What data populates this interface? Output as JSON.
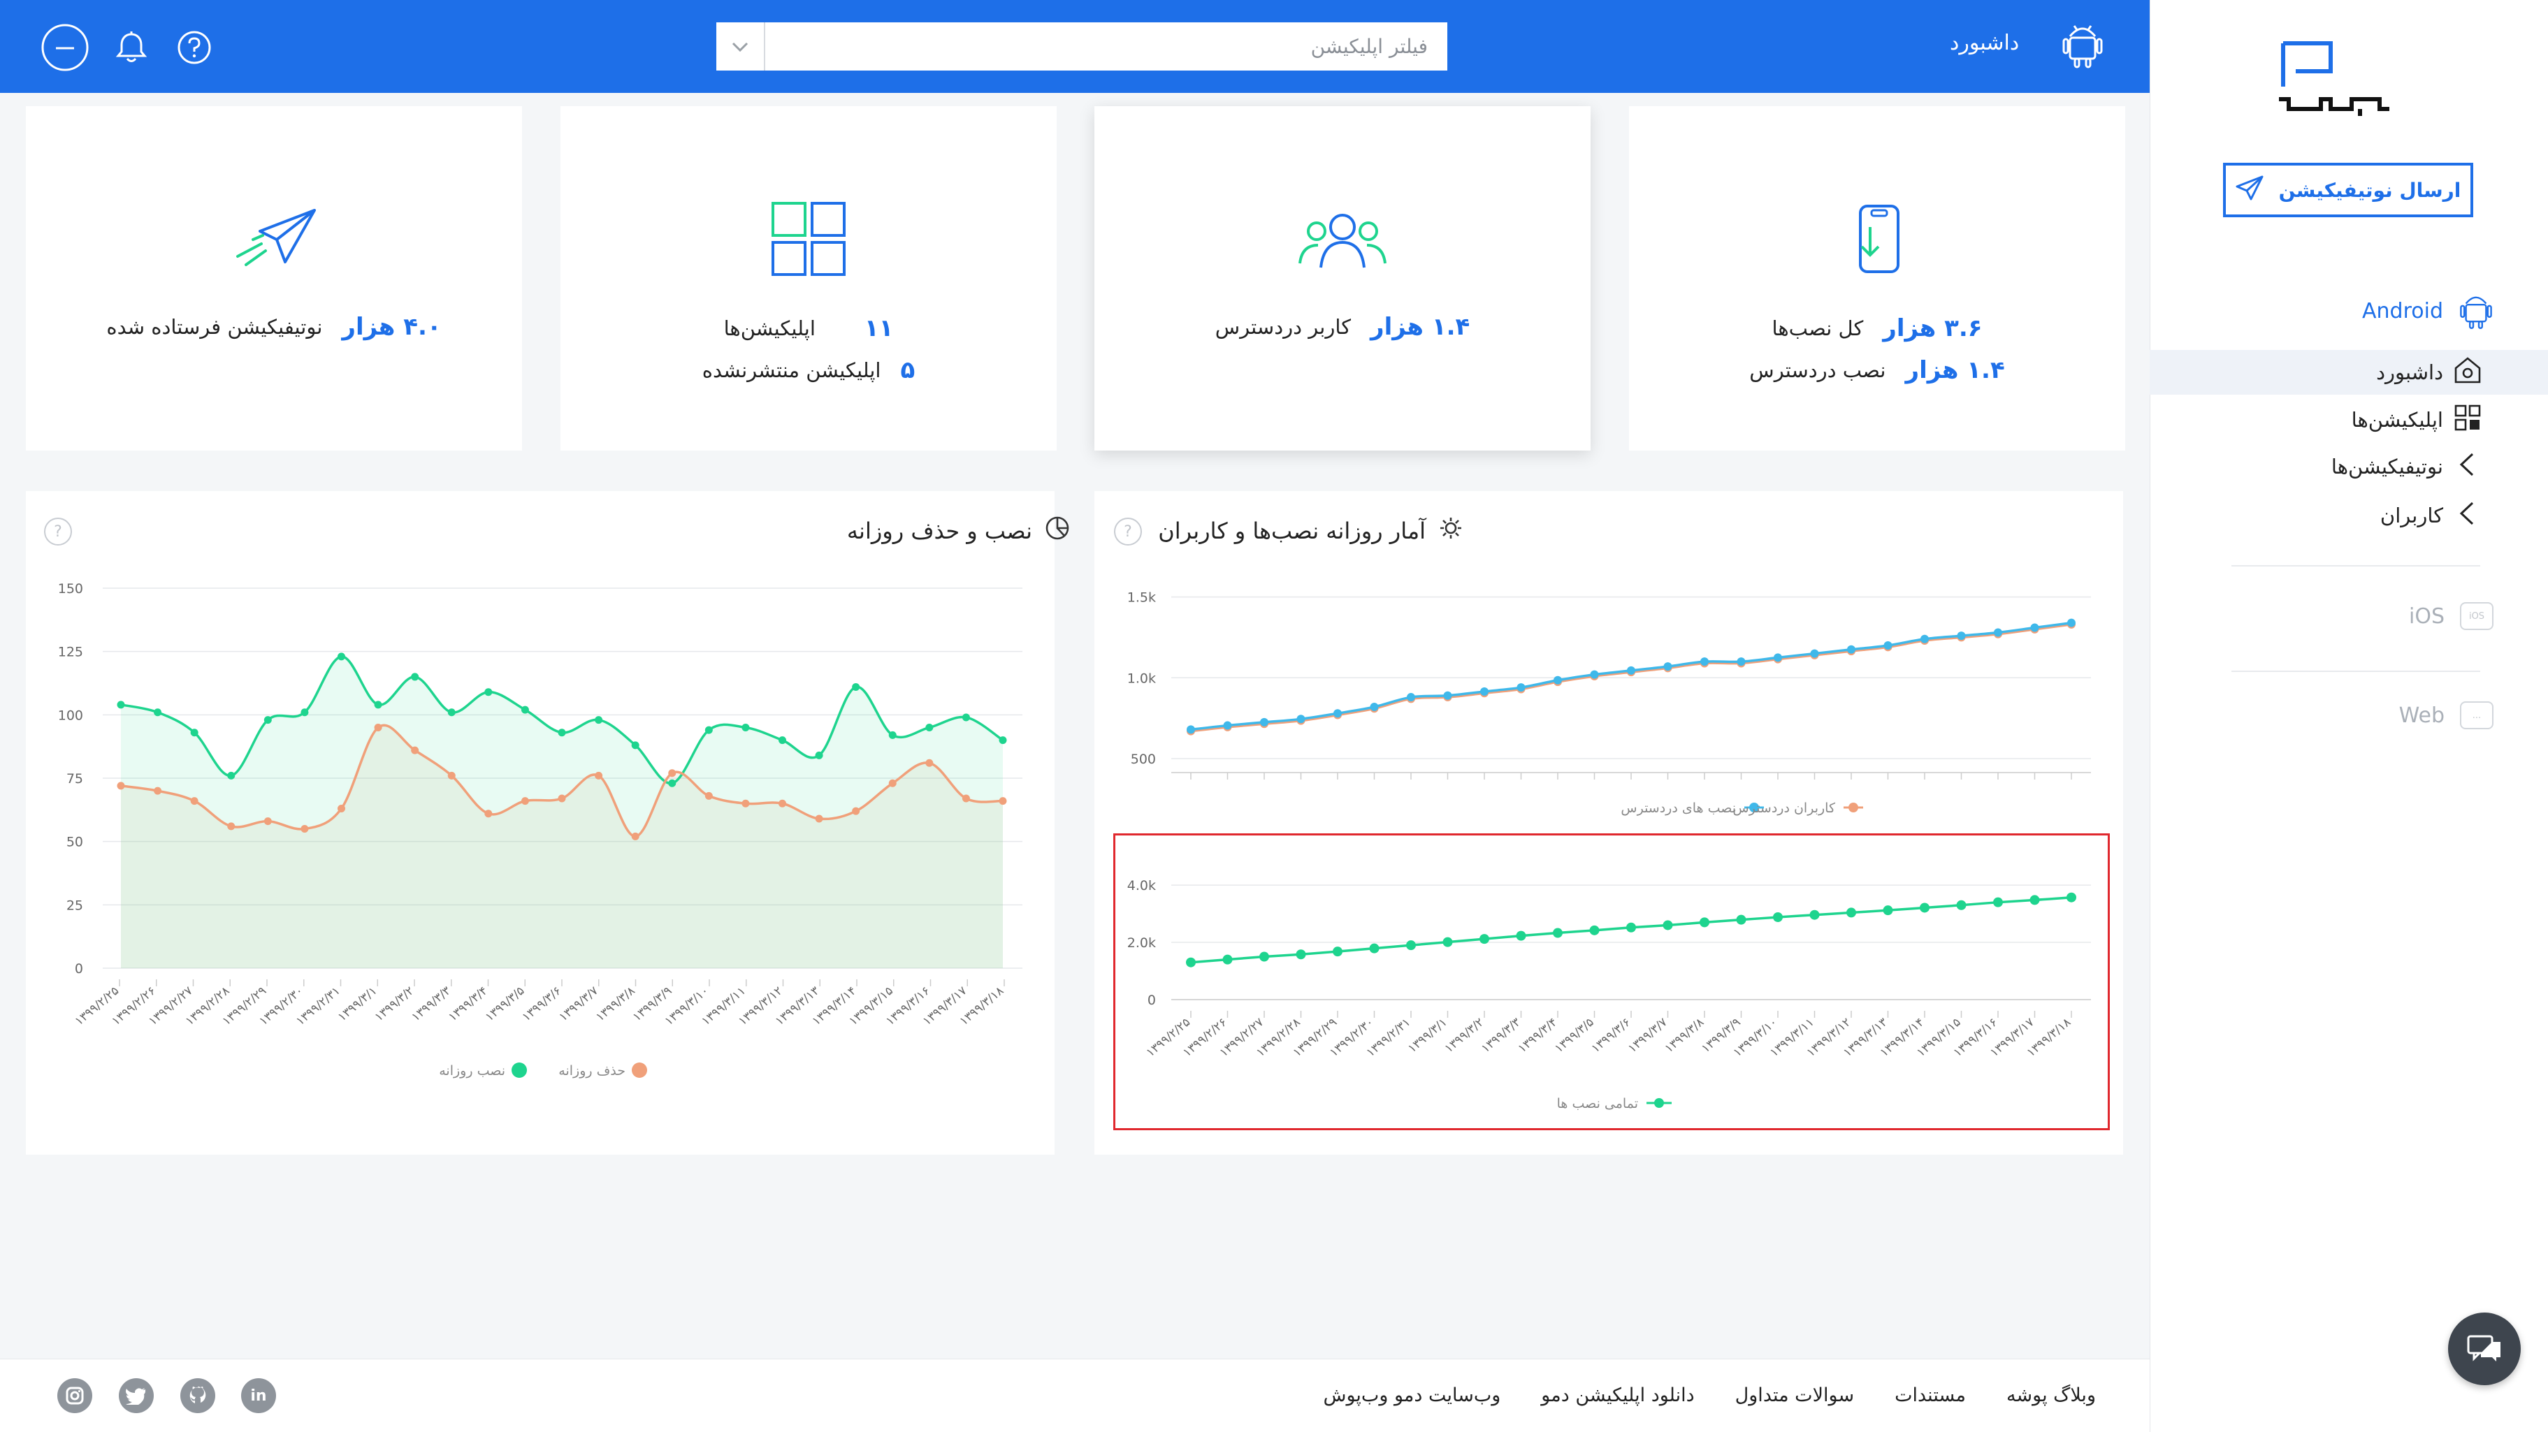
{
  "header": {
    "title": "داشبورد",
    "search_placeholder": "فیلتر اپلیکیشن"
  },
  "sidebar": {
    "send_button": "ارسال نوتیفیکیشن",
    "platforms": {
      "android": "Android",
      "ios": "iOS",
      "web": "Web",
      "ios_badge": "iOS",
      "web_badge": "..."
    },
    "items": [
      {
        "label": "داشبورد"
      },
      {
        "label": "اپلیکیشن‌ها"
      },
      {
        "label": "نوتیفیکیشن‌ها"
      },
      {
        "label": "کاربران"
      }
    ]
  },
  "stats": {
    "installs": {
      "total_value": "۳.۶ هزار",
      "total_label": "کل نصب‌ها",
      "accessible_value": "۱.۴ هزار",
      "accessible_label": "نصب دردسترس"
    },
    "users": {
      "value": "۱.۴ هزار",
      "label": "کاربر دردسترس"
    },
    "apps": {
      "count_value": "۱۱",
      "count_label": "اپلیکیشن‌ها",
      "unpublished_value": "۵",
      "unpublished_label": "اپلیکیشن منتشرنشده"
    },
    "notifications": {
      "value": "۴.۰ هزار",
      "label": "نوتیفیکیشن فرستاده شده"
    }
  },
  "charts": {
    "right_title": "آمار روزانه نصب‌ها و کاربران",
    "left_title": "نصب و حذف روزانه",
    "help": "?"
  },
  "footer": {
    "links": [
      "وبلاگ پوشه",
      "مستندات",
      "سوالات متداول",
      "دانلود اپلیکیشن دمو",
      "وب‌سایت دمو وب‌پوش"
    ]
  },
  "social": {
    "linkedin": "in"
  },
  "colors": {
    "accent": "#1e6fe8",
    "green": "#1ed48e",
    "orange": "#f0a07a",
    "sky": "#3fb8ea"
  },
  "chart_data": [
    {
      "type": "line",
      "title": "آمار روزانه نصب‌ها و کاربران",
      "categories": [
        "۱۳۹۹/۲/۲۵",
        "۱۳۹۹/۲/۲۶",
        "۱۳۹۹/۲/۲۷",
        "۱۳۹۹/۲/۲۸",
        "۱۳۹۹/۲/۲۹",
        "۱۳۹۹/۲/۳۰",
        "۱۳۹۹/۲/۳۱",
        "۱۳۹۹/۳/۱",
        "۱۳۹۹/۳/۲",
        "۱۳۹۹/۳/۳",
        "۱۳۹۹/۳/۴",
        "۱۳۹۹/۳/۵",
        "۱۳۹۹/۳/۶",
        "۱۳۹۹/۳/۷",
        "۱۳۹۹/۳/۸",
        "۱۳۹۹/۳/۹",
        "۱۳۹۹/۳/۱۰",
        "۱۳۹۹/۳/۱۱",
        "۱۳۹۹/۳/۱۲",
        "۱۳۹۹/۳/۱۳",
        "۱۳۹۹/۳/۱۴",
        "۱۳۹۹/۳/۱۵",
        "۱۳۹۹/۳/۱۶",
        "۱۳۹۹/۳/۱۷",
        "۱۳۹۹/۳/۱۸"
      ],
      "panels": [
        {
          "ytick_labels": [
            "500",
            "1.0k",
            "1.5k"
          ],
          "yticks": [
            500,
            1000,
            1500
          ],
          "ylim": [
            500,
            1550
          ],
          "series": [
            {
              "name": "نصب های دردسترس",
              "color": "#3fb8ea",
              "values": [
                680,
                705,
                725,
                745,
                780,
                820,
                880,
                890,
                915,
                940,
                985,
                1020,
                1045,
                1070,
                1100,
                1100,
                1125,
                1150,
                1175,
                1200,
                1240,
                1260,
                1280,
                1310,
                1340
              ]
            },
            {
              "name": "کاربران دردسترس",
              "color": "#f0a07a",
              "values": [
                670,
                695,
                715,
                735,
                770,
                810,
                870,
                880,
                905,
                930,
                975,
                1010,
                1035,
                1060,
                1090,
                1090,
                1115,
                1140,
                1165,
                1190,
                1230,
                1250,
                1270,
                1300,
                1330
              ]
            }
          ]
        },
        {
          "ytick_labels": [
            "0",
            "2.0k",
            "4.0k"
          ],
          "yticks": [
            0,
            2000,
            4000
          ],
          "ylim": [
            0,
            4100
          ],
          "series": [
            {
              "name": "تمامی نصب ها",
              "color": "#1ed48e",
              "values": [
                1300,
                1400,
                1500,
                1580,
                1680,
                1790,
                1900,
                2010,
                2120,
                2230,
                2330,
                2420,
                2520,
                2600,
                2700,
                2790,
                2880,
                2960,
                3040,
                3120,
                3210,
                3300,
                3400,
                3480,
                3570
              ]
            }
          ]
        }
      ]
    },
    {
      "type": "area",
      "title": "نصب و حذف روزانه",
      "categories": [
        "۱۳۹۹/۲/۲۵",
        "۱۳۹۹/۲/۲۶",
        "۱۳۹۹/۲/۲۷",
        "۱۳۹۹/۲/۲۸",
        "۱۳۹۹/۲/۲۹",
        "۱۳۹۹/۲/۳۰",
        "۱۳۹۹/۲/۳۱",
        "۱۳۹۹/۳/۱",
        "۱۳۹۹/۳/۲",
        "۱۳۹۹/۳/۳",
        "۱۳۹۹/۳/۴",
        "۱۳۹۹/۳/۵",
        "۱۳۹۹/۳/۶",
        "۱۳۹۹/۳/۷",
        "۱۳۹۹/۳/۸",
        "۱۳۹۹/۳/۹",
        "۱۳۹۹/۳/۱۰",
        "۱۳۹۹/۳/۱۱",
        "۱۳۹۹/۳/۱۲",
        "۱۳۹۹/۳/۱۳",
        "۱۳۹۹/۳/۱۴",
        "۱۳۹۹/۳/۱۵",
        "۱۳۹۹/۳/۱۶",
        "۱۳۹۹/۳/۱۷",
        "۱۳۹۹/۳/۱۸"
      ],
      "ytick_labels": [
        "0",
        "25",
        "50",
        "75",
        "100",
        "125",
        "150"
      ],
      "yticks": [
        0,
        25,
        50,
        75,
        100,
        125,
        150
      ],
      "ylim": [
        0,
        150
      ],
      "series": [
        {
          "name": "نصب روزانه",
          "color": "#1ed48e",
          "values": [
            104,
            101,
            93,
            76,
            98,
            101,
            123,
            104,
            115,
            101,
            109,
            102,
            93,
            98,
            88,
            73,
            94,
            95,
            90,
            84,
            111,
            92,
            95,
            99,
            90
          ]
        },
        {
          "name": "حذف روزانه",
          "color": "#f0a07a",
          "values": [
            72,
            70,
            66,
            56,
            58,
            55,
            63,
            95,
            86,
            76,
            61,
            66,
            67,
            76,
            52,
            77,
            68,
            65,
            65,
            59,
            62,
            73,
            81,
            67,
            66
          ]
        }
      ]
    }
  ]
}
